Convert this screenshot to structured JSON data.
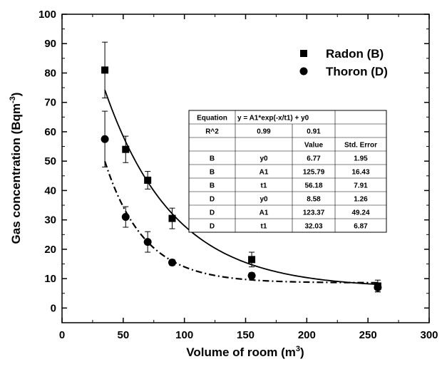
{
  "chart_data": {
    "type": "scatter",
    "xlabel_main": "Volume of room (m",
    "xlabel_sup": "3",
    "xlabel_end": ")",
    "ylabel_main": "Gas concentration (Bqm",
    "ylabel_sup": "-3",
    "ylabel_end": ")",
    "xlim": [
      0,
      300
    ],
    "ylim": [
      -5,
      100
    ],
    "x_ticks": [
      0,
      50,
      100,
      150,
      200,
      250,
      300
    ],
    "y_ticks": [
      0,
      10,
      20,
      30,
      40,
      50,
      60,
      70,
      80,
      90,
      100
    ],
    "legend_position": "top-right",
    "series": [
      {
        "name": "Radon (B)",
        "marker": "square",
        "x": [
          35,
          52,
          70,
          90,
          155,
          258
        ],
        "y": [
          81,
          54,
          43.5,
          30.5,
          16.5,
          7.5
        ],
        "err": [
          9.5,
          4.5,
          3,
          3.5,
          2.5,
          2
        ],
        "fit": {
          "y0": 6.77,
          "A1": 125.79,
          "t1": 56.18,
          "style": "solid"
        }
      },
      {
        "name": "Thoron (D)",
        "marker": "circle",
        "x": [
          35,
          52,
          70,
          90,
          155,
          258
        ],
        "y": [
          57.5,
          31,
          22.5,
          15.5,
          11,
          7
        ],
        "err": [
          9.5,
          3.5,
          3.5,
          1,
          1,
          1.5
        ],
        "fit": {
          "y0": 8.58,
          "A1": 123.37,
          "t1": 32.03,
          "style": "dash-dot"
        }
      }
    ],
    "fit_table": {
      "rows": [
        [
          "Equation",
          "y = A1*exp(-x/t1) + y0",
          "",
          ""
        ],
        [
          "R^2",
          "0.99",
          "0.91",
          ""
        ],
        [
          "",
          "",
          "Value",
          "Std. Error"
        ],
        [
          "B",
          "y0",
          "6.77",
          "1.95"
        ],
        [
          "B",
          "A1",
          "125.79",
          "16.43"
        ],
        [
          "B",
          "t1",
          "56.18",
          "7.91"
        ],
        [
          "D",
          "y0",
          "8.58",
          "1.26"
        ],
        [
          "D",
          "A1",
          "123.37",
          "49.24"
        ],
        [
          "D",
          "t1",
          "32.03",
          "6.87"
        ]
      ]
    }
  }
}
